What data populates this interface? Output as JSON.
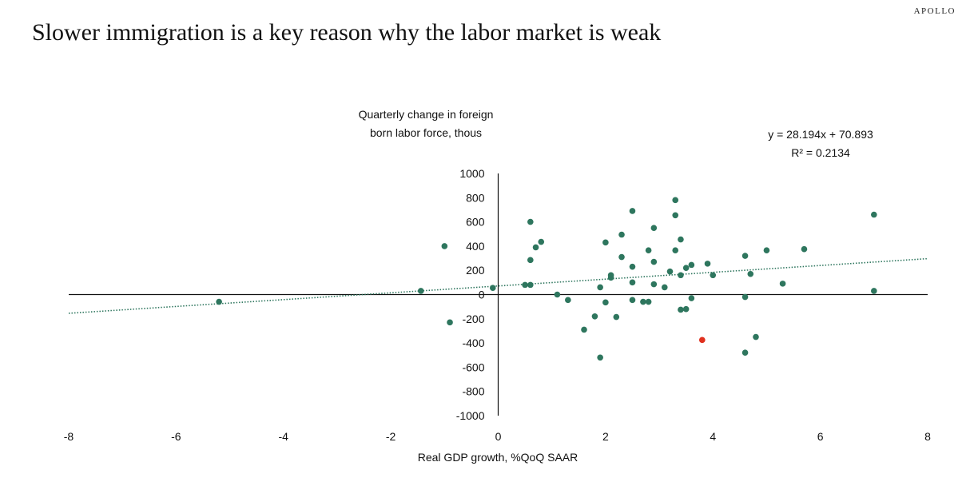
{
  "brand": "APOLLO",
  "title": "Slower immigration is a key reason why the labor market is weak",
  "chart_data": {
    "type": "scatter",
    "ylabel_lines": [
      "Quarterly change in foreign",
      "born labor force, thous"
    ],
    "xlabel": "Real GDP growth, %QoQ SAAR",
    "equation": "y = 28.194x + 70.893",
    "r2_label": "R² = 0.2134",
    "trend": {
      "slope": 28.194,
      "intercept": 70.893
    },
    "xlim": [
      -8,
      8
    ],
    "ylim": [
      -1000,
      1000
    ],
    "xticks": [
      -8,
      -6,
      -4,
      -2,
      0,
      2,
      4,
      6,
      8
    ],
    "yticks": [
      1000,
      800,
      600,
      400,
      200,
      0,
      -200,
      -400,
      -600,
      -800,
      -1000
    ],
    "colors": {
      "point": "#2e765e",
      "highlight": "#e0301e",
      "axis": "#111111"
    },
    "points": [
      [
        -5.2,
        -60
      ],
      [
        -1.44,
        30
      ],
      [
        -1.0,
        400
      ],
      [
        -0.9,
        -230
      ],
      [
        -0.1,
        55
      ],
      [
        0.5,
        80
      ],
      [
        0.6,
        80
      ],
      [
        0.6,
        600
      ],
      [
        0.6,
        285
      ],
      [
        0.7,
        390
      ],
      [
        0.8,
        435
      ],
      [
        1.1,
        0
      ],
      [
        1.3,
        -45
      ],
      [
        1.6,
        -290
      ],
      [
        1.8,
        -180
      ],
      [
        1.9,
        60
      ],
      [
        1.9,
        -520
      ],
      [
        2.0,
        430
      ],
      [
        2.0,
        -65
      ],
      [
        2.1,
        160
      ],
      [
        2.1,
        140
      ],
      [
        2.2,
        -185
      ],
      [
        2.3,
        495
      ],
      [
        2.3,
        310
      ],
      [
        2.5,
        690
      ],
      [
        2.5,
        230
      ],
      [
        2.5,
        100
      ],
      [
        2.5,
        -45
      ],
      [
        2.7,
        -60
      ],
      [
        2.8,
        -60
      ],
      [
        2.8,
        365
      ],
      [
        2.9,
        550
      ],
      [
        2.9,
        270
      ],
      [
        2.9,
        85
      ],
      [
        3.1,
        60
      ],
      [
        3.2,
        190
      ],
      [
        3.3,
        780
      ],
      [
        3.3,
        655
      ],
      [
        3.3,
        365
      ],
      [
        3.4,
        455
      ],
      [
        3.4,
        160
      ],
      [
        3.4,
        -125
      ],
      [
        3.5,
        220
      ],
      [
        3.5,
        -120
      ],
      [
        3.6,
        245
      ],
      [
        3.6,
        -30
      ],
      [
        3.9,
        255
      ],
      [
        4.0,
        160
      ],
      [
        4.6,
        320
      ],
      [
        4.6,
        -20
      ],
      [
        4.6,
        -480
      ],
      [
        4.7,
        170
      ],
      [
        4.8,
        -350
      ],
      [
        5.0,
        365
      ],
      [
        5.3,
        90
      ],
      [
        5.7,
        375
      ],
      [
        7.0,
        660
      ],
      [
        7.0,
        30
      ]
    ],
    "highlight_points": [
      [
        3.8,
        -375
      ]
    ]
  }
}
